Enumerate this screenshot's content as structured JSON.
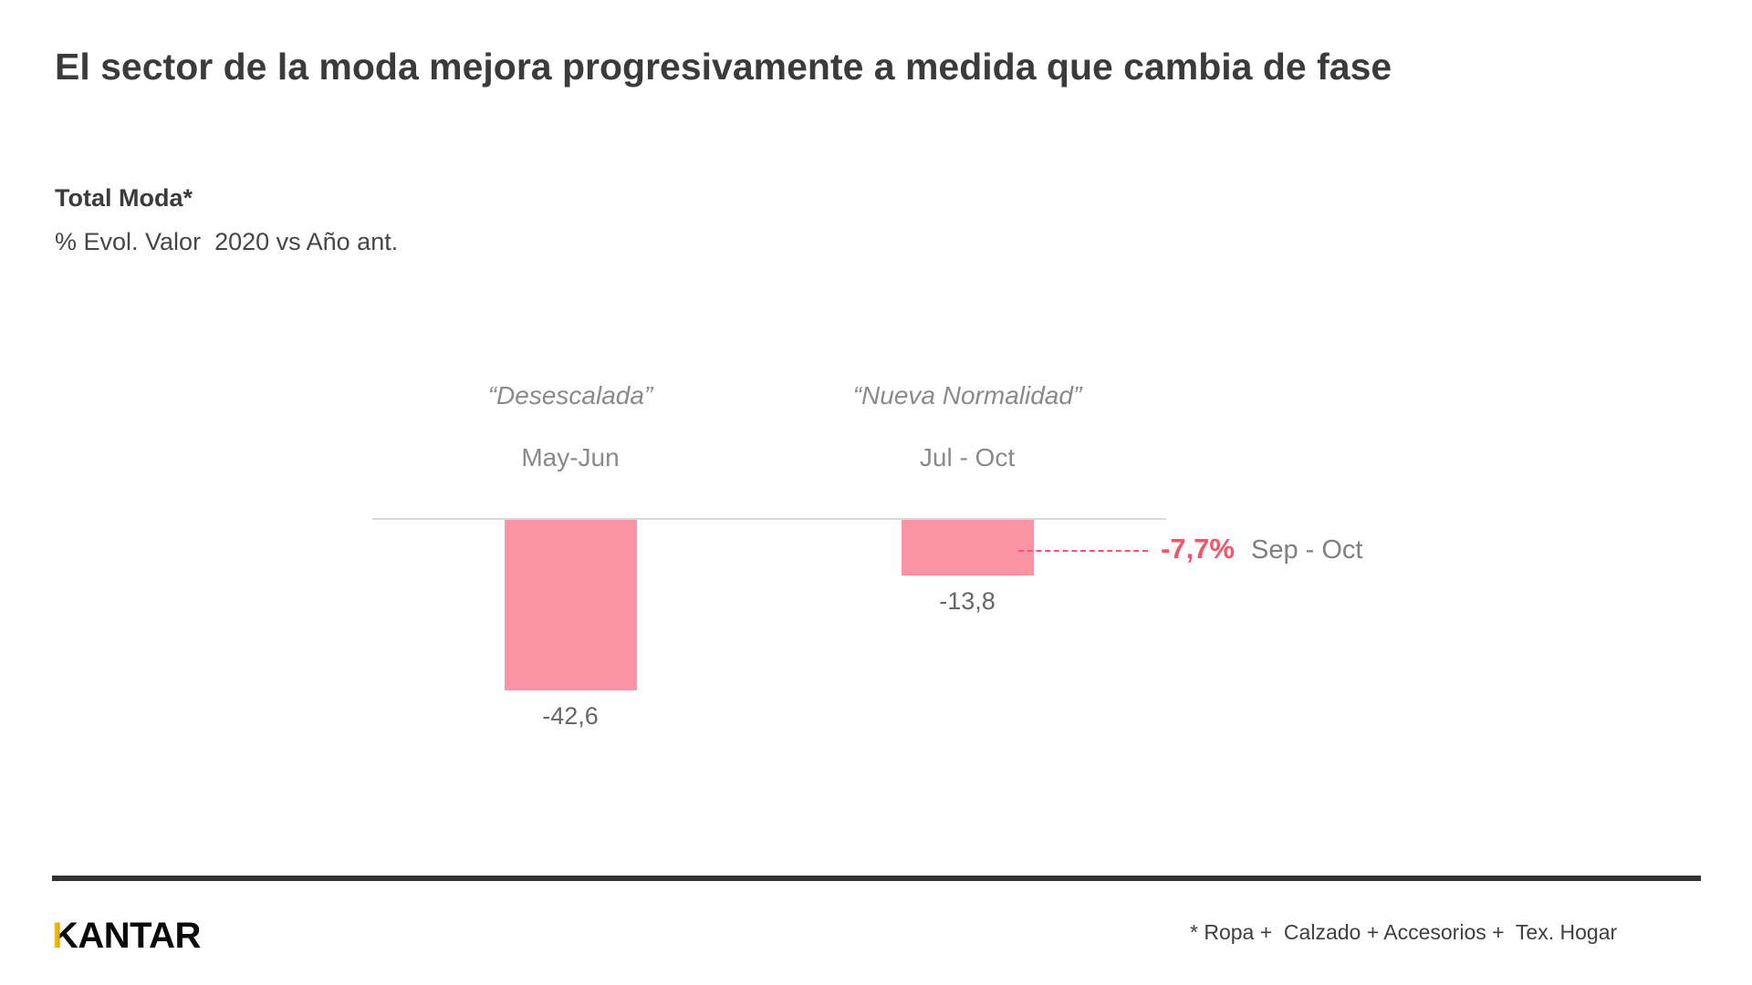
{
  "slide": {
    "title": "El sector de la moda mejora progresivamente a medida que cambia de fase",
    "kicker_bold": "Total Moda*",
    "kicker_metric": "% Evol. Valor  2020 vs Año ant."
  },
  "chart_data": {
    "type": "bar",
    "title": "Total Moda* — % Evol. Valor 2020 vs Año ant.",
    "xlabel": "",
    "ylabel": "% Evol. Valor",
    "ylim": [
      -45,
      0
    ],
    "grid": false,
    "legend": false,
    "bar_color": "#FD94A5",
    "baseline_color": "#D9D9D9",
    "phases": [
      "“Desescalada”",
      "“Nueva Normalidad”"
    ],
    "categories": [
      "May-Jun",
      "Jul - Oct"
    ],
    "values": [
      -42.6,
      -13.8
    ],
    "value_labels": [
      "-42,6",
      "-13,8"
    ],
    "annotation": {
      "value": -7.7,
      "label": "-7,7%",
      "period": "Sep - Oct",
      "color": "#F9526B",
      "line_style": "dashed"
    }
  },
  "footer": {
    "logo": "KANTAR",
    "footnote": "* Ropa +  Calzado + Accesorios +  Tex. Hogar"
  }
}
